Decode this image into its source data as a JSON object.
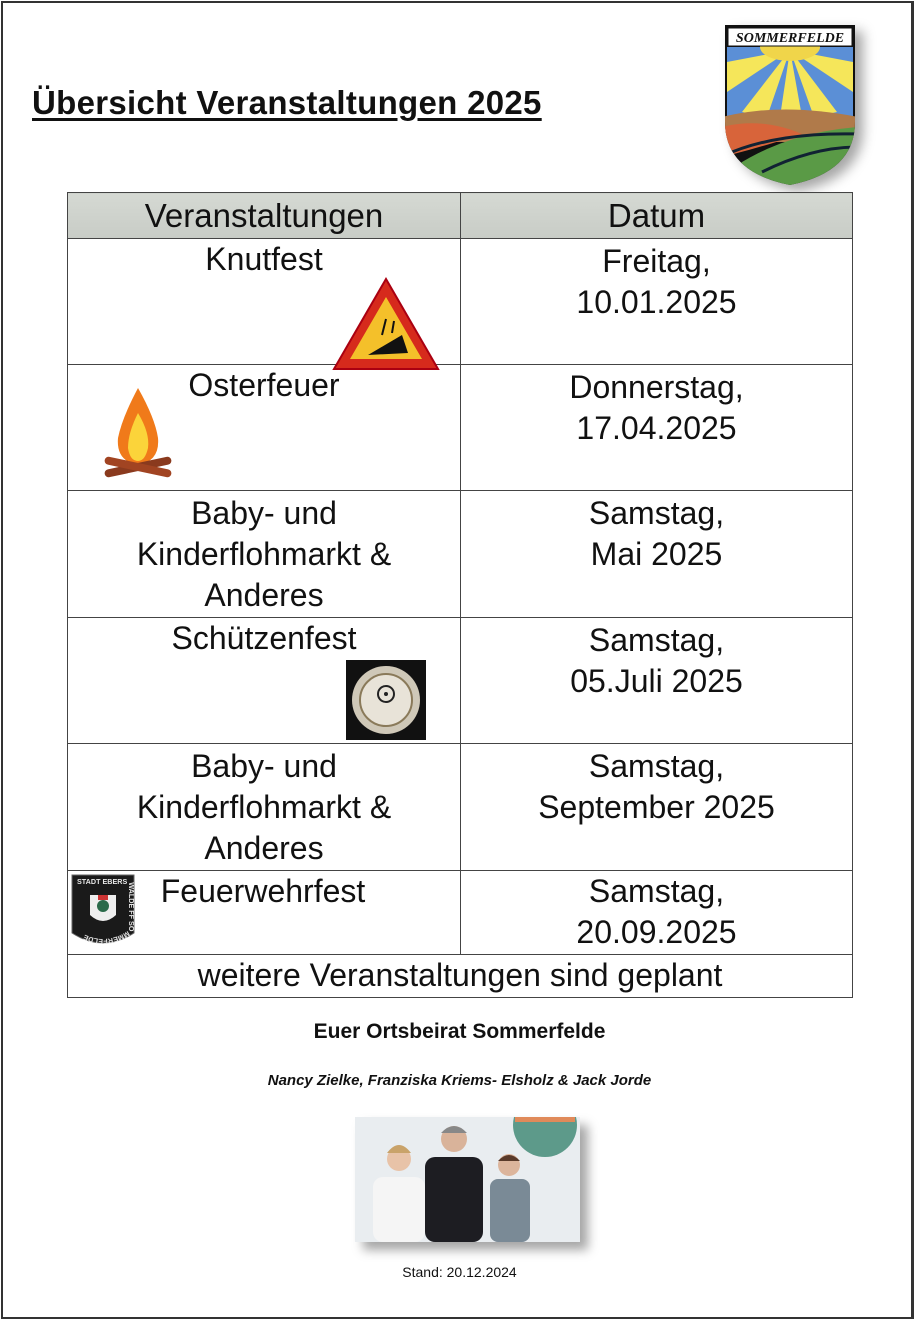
{
  "title": "Übersicht Veranstaltungen 2025",
  "crest": {
    "text": "SOMMERFELDE"
  },
  "table": {
    "headers": [
      "Veranstaltungen",
      "Datum"
    ],
    "rows": [
      {
        "event": "Knutfest",
        "date": "Freitag,\n10.01.2025",
        "icon": "tree-warning-sign-icon"
      },
      {
        "event": "Osterfeuer",
        "date": "Donnerstag,\n17.04.2025",
        "icon": "campfire-icon"
      },
      {
        "event": "Baby- und\nKinderflohmarkt &\nAnderes",
        "date": "Samstag,\nMai 2025"
      },
      {
        "event": "Schützenfest",
        "date": "Samstag,\n05.Juli 2025",
        "icon": "target-emblem-icon"
      },
      {
        "event": "Baby- und\nKinderflohmarkt &\nAnderes",
        "date": "Samstag,\nSeptember 2025"
      },
      {
        "event": "Feuerwehrfest",
        "date": "Samstag,\n20.09.2025",
        "icon": "fire-brigade-badge-icon"
      }
    ],
    "footer": "weitere Veranstaltungen sind geplant"
  },
  "badge": {
    "text": "STADT EBERSWALDE FF SOMMERFELDE"
  },
  "organization": "Euer Ortsbeirat Sommerfelde",
  "members": "Nancy Zielke, Franziska Kriems- Elsholz & Jack Jorde",
  "stand": "Stand: 20.12.2024"
}
